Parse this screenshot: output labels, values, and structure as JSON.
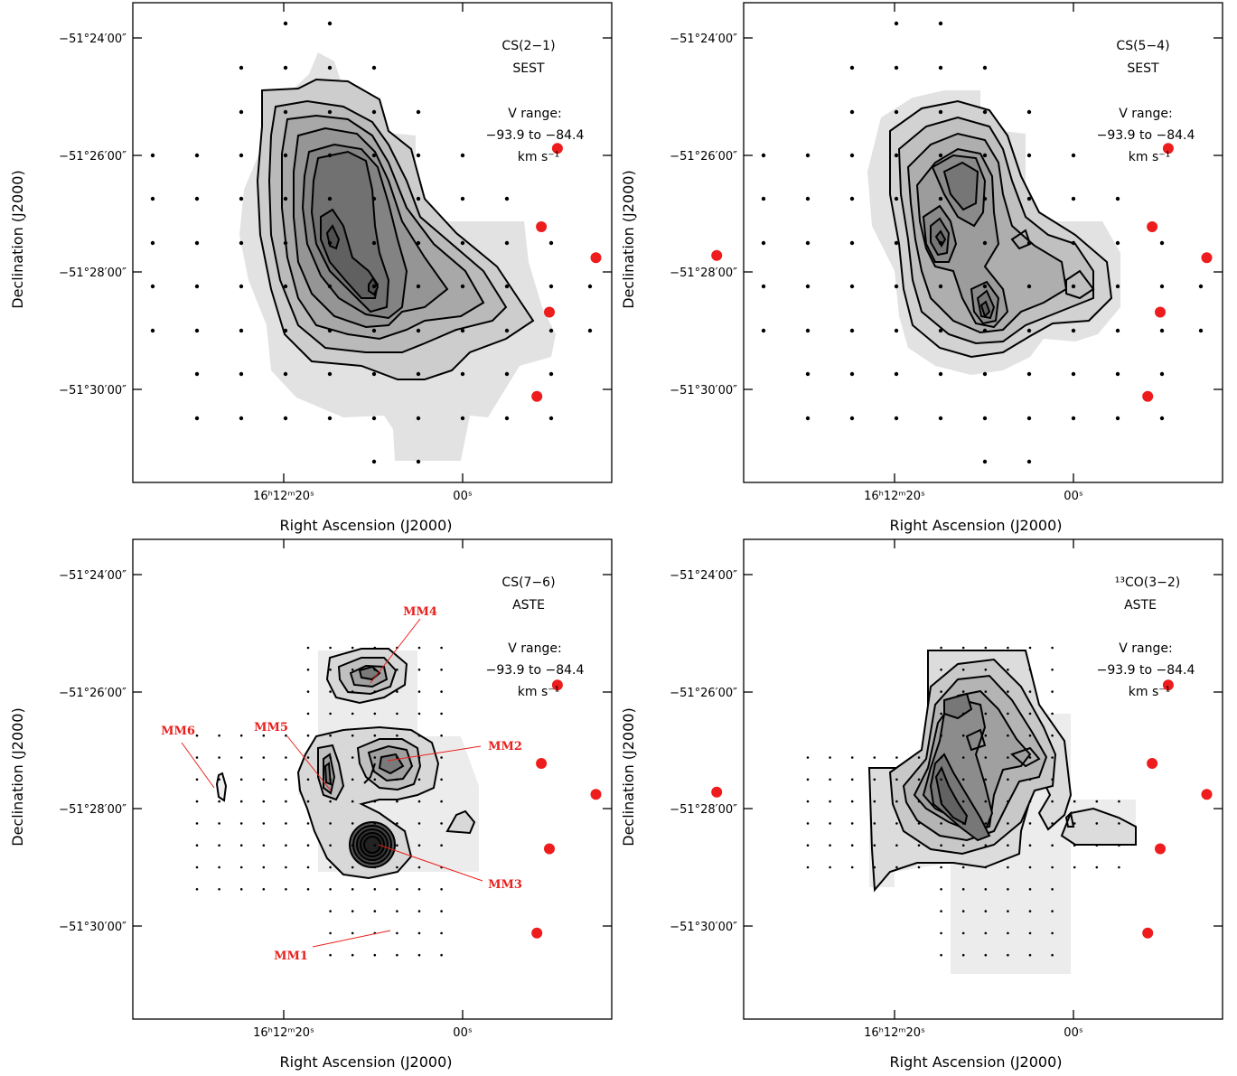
{
  "axis_labels": {
    "x": "Right Ascension (J2000)",
    "y": "Declination (J2000)"
  },
  "tick_labels": {
    "x": [
      "16ʰ12ᵐ20ˢ",
      "00ˢ"
    ],
    "y": [
      "−51°24′00″",
      "−51°26′00″",
      "−51°28′00″",
      "−51°30′00″"
    ]
  },
  "colors": {
    "source": "#ee1c1c",
    "contour": "#000000",
    "frame": "#000000"
  },
  "panels": [
    {
      "id": "cs21",
      "line": "CS(2−1)",
      "telescope": "SEST",
      "vrange_title": "V range:",
      "vrange_values": "−93.9 to −84.4",
      "vrange_unit": "km s⁻¹"
    },
    {
      "id": "cs54",
      "line": "CS(5−4)",
      "telescope": "SEST",
      "vrange_title": "V range:",
      "vrange_values": "−93.9 to −84.4",
      "vrange_unit": "km s⁻¹"
    },
    {
      "id": "cs76",
      "line": "CS(7−6)",
      "telescope": "ASTE",
      "vrange_title": "V range:",
      "vrange_values": "−93.9 to −84.4",
      "vrange_unit": "km s⁻¹"
    },
    {
      "id": "co32",
      "line": "¹³CO(3−2)",
      "telescope": "ASTE",
      "vrange_title": "V range:",
      "vrange_values": "−93.9 to −84.4",
      "vrange_unit": "km s⁻¹"
    }
  ],
  "chart_data": {
    "type": "heatmap",
    "description_free": true,
    "x_unit": "RA offset (s from 16h12m00s)",
    "y_unit": "Dec offset (arcmin from -51°26′00″)",
    "xlim": [
      33,
      -25
    ],
    "ylim": [
      -6.2,
      2.1
    ],
    "x_ticks": [
      20,
      0
    ],
    "y_ticks": [
      2,
      0,
      -2,
      -4
    ],
    "sources": [
      {
        "name": "MM1",
        "ra": 8.3,
        "dec": -4.12
      },
      {
        "name": "MM2",
        "ra": 8.8,
        "dec": -1.22
      },
      {
        "name": "MM3",
        "ra": 9.7,
        "dec": -2.68
      },
      {
        "name": "MM4",
        "ra": 10.6,
        "dec": 0.12
      },
      {
        "name": "MM5",
        "ra": 14.9,
        "dec": -1.75
      },
      {
        "name": "MM6",
        "ra": 28.4,
        "dec": -1.71
      }
    ],
    "source_labels": [
      "MM1",
      "MM2",
      "MM3",
      "MM4",
      "MM5",
      "MM6"
    ]
  }
}
